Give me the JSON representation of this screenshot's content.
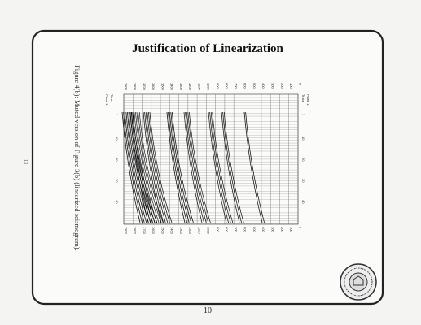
{
  "header": {
    "title": "Justification of Linearization"
  },
  "figure": {
    "caption": "Figure 4(b): Muted version of Figure 3(b) (linearized seismogram).",
    "plane_label": "Plane 1",
    "trace_axis_title": "Trace",
    "time_axis_title": "Time",
    "trace_labels": [
      "1",
      "10",
      "20",
      "30",
      "40"
    ],
    "time_labels": [
      "0",
      "100",
      "200",
      "300",
      "400",
      "500",
      "600",
      "700",
      "800",
      "900",
      "1000",
      "1100",
      "1200",
      "1300",
      "1400",
      "1500",
      "1600",
      "1700",
      "1800",
      "1900"
    ]
  },
  "footer": {
    "page_number": "10",
    "side_number": "13"
  }
}
